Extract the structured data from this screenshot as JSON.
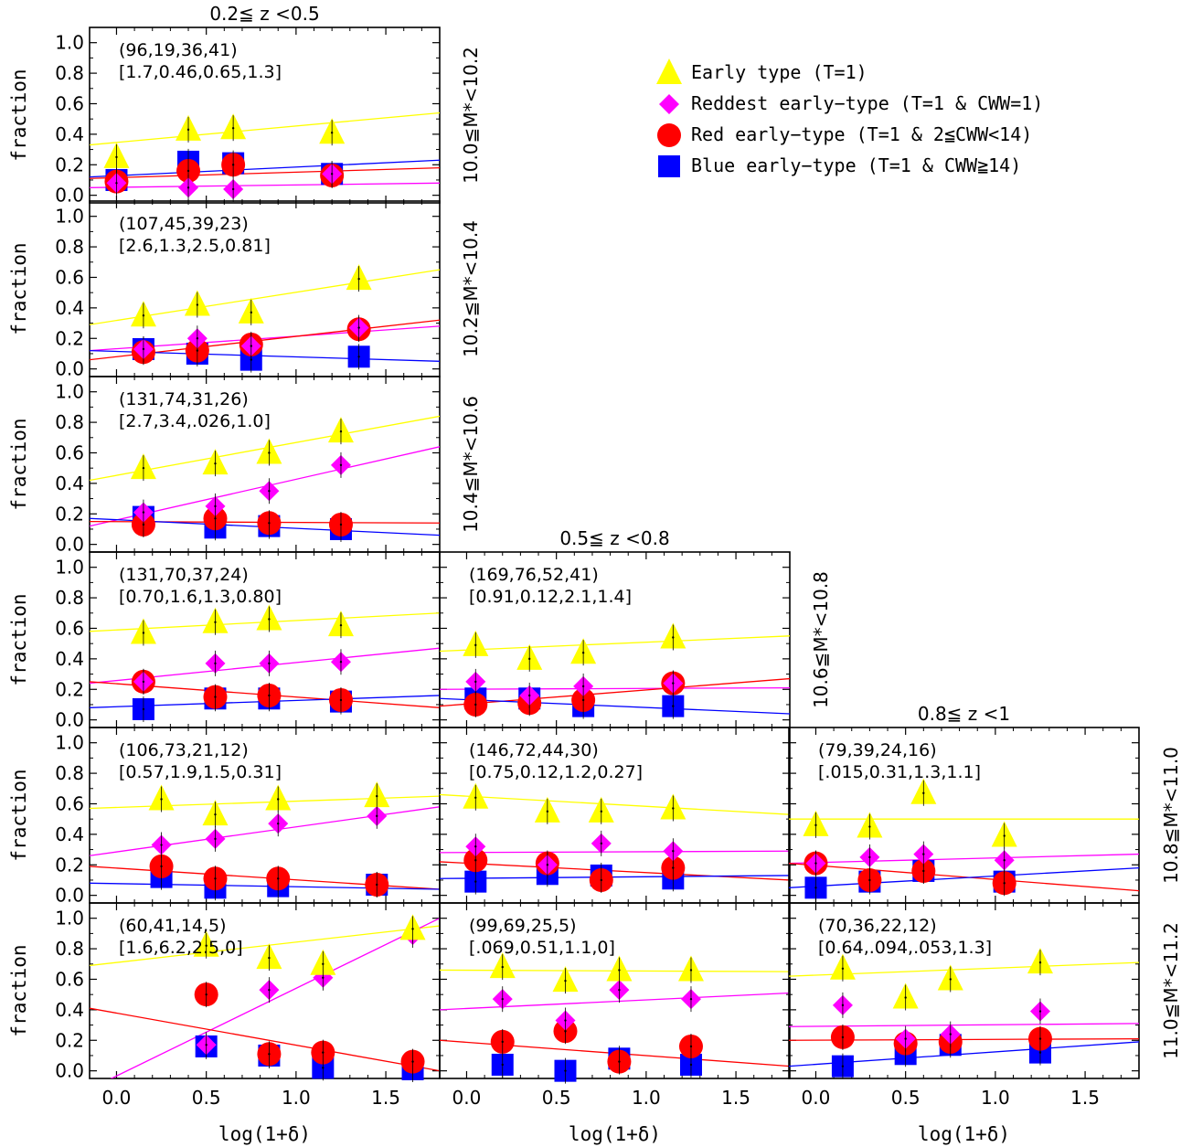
{
  "figure": {
    "x_axis_label": "log(1+δ)",
    "y_axis_label": "fraction",
    "x_tick_labels": [
      "0.0",
      "0.5",
      "1.0",
      "1.5"
    ],
    "y_tick_labels": [
      "0.0",
      "0.2",
      "0.4",
      "0.6",
      "0.8",
      "1.0"
    ],
    "columns": [
      {
        "redshift_label": "0.2≦ z <0.5"
      },
      {
        "redshift_label": "0.5≦ z <0.8"
      },
      {
        "redshift_label": "0.8≦ z <1"
      }
    ],
    "rows": [
      {
        "mass_label": "10.0≦M*<10.2"
      },
      {
        "mass_label": "10.2≦M*<10.4"
      },
      {
        "mass_label": "10.4≦M*<10.6"
      },
      {
        "mass_label": "10.6≦M*<10.8"
      },
      {
        "mass_label": "10.8≦M*<11.0"
      },
      {
        "mass_label": "11.0≦M*<11.2"
      }
    ],
    "legend": [
      {
        "key": "early",
        "label": "Early type (T=1)",
        "marker": "triangle",
        "color": "#ffff00"
      },
      {
        "key": "reddest",
        "label": "Reddest early−type (T=1 & CWW=1)",
        "marker": "diamond",
        "color": "#ff00ff"
      },
      {
        "key": "red",
        "label": "Red early−type  (T=1 & 2≦CWW<14)",
        "marker": "circle",
        "color": "#ff0000"
      },
      {
        "key": "blue",
        "label": "Blue early−type (T=1 & CWW≧14)",
        "marker": "square",
        "color": "#0000ff"
      }
    ],
    "legend_position": "top-right"
  },
  "chart_data": [
    {
      "type": "scatter",
      "panel": "col1-row1",
      "counts": "(96,19,36,41)",
      "ratios": "[1.7,0.46,0.65,1.3]",
      "xlim": [
        -0.15,
        1.8
      ],
      "ylim": [
        -0.05,
        1.1
      ],
      "series": [
        {
          "key": "early",
          "x": [
            0.0,
            0.4,
            0.65,
            1.2
          ],
          "y": [
            0.25,
            0.43,
            0.44,
            0.41
          ],
          "fit": [
            0.33,
            0.54
          ]
        },
        {
          "key": "reddest",
          "x": [
            0.0,
            0.4,
            0.65,
            1.2
          ],
          "y": [
            0.08,
            0.05,
            0.04,
            0.14
          ],
          "fit": [
            0.05,
            0.08
          ]
        },
        {
          "key": "red",
          "x": [
            0.0,
            0.4,
            0.65,
            1.2
          ],
          "y": [
            0.09,
            0.16,
            0.2,
            0.13
          ],
          "fit": [
            0.11,
            0.18
          ]
        },
        {
          "key": "blue",
          "x": [
            0.0,
            0.4,
            0.65,
            1.2
          ],
          "y": [
            0.1,
            0.22,
            0.21,
            0.14
          ],
          "fit": [
            0.12,
            0.23
          ]
        }
      ]
    },
    {
      "type": "scatter",
      "panel": "col1-row2",
      "counts": "(107,45,39,23)",
      "ratios": "[2.6,1.3,2.5,0.81]",
      "xlim": [
        -0.15,
        1.8
      ],
      "ylim": [
        -0.05,
        1.1
      ],
      "series": [
        {
          "key": "early",
          "x": [
            0.15,
            0.45,
            0.75,
            1.35
          ],
          "y": [
            0.35,
            0.42,
            0.37,
            0.59
          ],
          "fit": [
            0.29,
            0.65
          ]
        },
        {
          "key": "reddest",
          "x": [
            0.15,
            0.45,
            0.75,
            1.35
          ],
          "y": [
            0.13,
            0.2,
            0.15,
            0.27
          ],
          "fit": [
            0.12,
            0.28
          ]
        },
        {
          "key": "red",
          "x": [
            0.15,
            0.45,
            0.75,
            1.35
          ],
          "y": [
            0.11,
            0.12,
            0.16,
            0.26
          ],
          "fit": [
            0.06,
            0.32
          ]
        },
        {
          "key": "blue",
          "x": [
            0.15,
            0.45,
            0.75,
            1.35
          ],
          "y": [
            0.13,
            0.1,
            0.06,
            0.08
          ],
          "fit": [
            0.12,
            0.05
          ]
        }
      ]
    },
    {
      "type": "scatter",
      "panel": "col1-row3",
      "counts": "(131,74,31,26)",
      "ratios": "[2.7,3.4,.026,1.0]",
      "xlim": [
        -0.15,
        1.8
      ],
      "ylim": [
        -0.05,
        1.1
      ],
      "series": [
        {
          "key": "early",
          "x": [
            0.15,
            0.55,
            0.85,
            1.25
          ],
          "y": [
            0.5,
            0.53,
            0.6,
            0.74
          ],
          "fit": [
            0.42,
            0.84
          ]
        },
        {
          "key": "reddest",
          "x": [
            0.15,
            0.55,
            0.85,
            1.25
          ],
          "y": [
            0.21,
            0.25,
            0.35,
            0.52
          ],
          "fit": [
            0.12,
            0.64
          ]
        },
        {
          "key": "red",
          "x": [
            0.15,
            0.55,
            0.85,
            1.25
          ],
          "y": [
            0.13,
            0.17,
            0.14,
            0.13
          ],
          "fit": [
            0.15,
            0.14
          ]
        },
        {
          "key": "blue",
          "x": [
            0.15,
            0.55,
            0.85,
            1.25
          ],
          "y": [
            0.18,
            0.11,
            0.12,
            0.1
          ],
          "fit": [
            0.17,
            0.06
          ]
        }
      ]
    },
    {
      "type": "scatter",
      "panel": "col1-row4",
      "counts": "(131,70,37,24)",
      "ratios": "[0.70,1.6,1.3,0.80]",
      "xlim": [
        -0.15,
        1.8
      ],
      "ylim": [
        -0.05,
        1.1
      ],
      "series": [
        {
          "key": "early",
          "x": [
            0.15,
            0.55,
            0.85,
            1.25
          ],
          "y": [
            0.57,
            0.64,
            0.66,
            0.62
          ],
          "fit": [
            0.58,
            0.7
          ]
        },
        {
          "key": "reddest",
          "x": [
            0.15,
            0.55,
            0.85,
            1.25
          ],
          "y": [
            0.25,
            0.37,
            0.37,
            0.38
          ],
          "fit": [
            0.24,
            0.47
          ]
        },
        {
          "key": "red",
          "x": [
            0.15,
            0.55,
            0.85,
            1.25
          ],
          "y": [
            0.25,
            0.15,
            0.16,
            0.13
          ],
          "fit": [
            0.25,
            0.08
          ]
        },
        {
          "key": "blue",
          "x": [
            0.15,
            0.55,
            0.85,
            1.25
          ],
          "y": [
            0.07,
            0.14,
            0.14,
            0.12
          ],
          "fit": [
            0.08,
            0.16
          ]
        }
      ]
    },
    {
      "type": "scatter",
      "panel": "col1-row5",
      "counts": "(106,73,21,12)",
      "ratios": "[0.57,1.9,1.5,0.31]",
      "xlim": [
        -0.15,
        1.8
      ],
      "ylim": [
        -0.05,
        1.1
      ],
      "series": [
        {
          "key": "early",
          "x": [
            0.25,
            0.55,
            0.9,
            1.45
          ],
          "y": [
            0.63,
            0.53,
            0.63,
            0.65
          ],
          "fit": [
            0.57,
            0.65
          ]
        },
        {
          "key": "reddest",
          "x": [
            0.25,
            0.55,
            0.9,
            1.45
          ],
          "y": [
            0.33,
            0.37,
            0.47,
            0.52
          ],
          "fit": [
            0.26,
            0.58
          ]
        },
        {
          "key": "red",
          "x": [
            0.25,
            0.55,
            0.9,
            1.45
          ],
          "y": [
            0.19,
            0.11,
            0.11,
            0.07
          ],
          "fit": [
            0.19,
            0.04
          ]
        },
        {
          "key": "blue",
          "x": [
            0.25,
            0.55,
            0.9,
            1.45
          ],
          "y": [
            0.12,
            0.05,
            0.06,
            0.07
          ],
          "fit": [
            0.08,
            0.04
          ]
        }
      ]
    },
    {
      "type": "scatter",
      "panel": "col1-row6",
      "counts": "(60,41,14,5)",
      "ratios": "[1.6,6.2,2.5,0]",
      "xlim": [
        -0.15,
        1.8
      ],
      "ylim": [
        -0.05,
        1.1
      ],
      "series": [
        {
          "key": "early",
          "x": [
            0.5,
            0.85,
            1.15,
            1.65
          ],
          "y": [
            0.82,
            0.74,
            0.7,
            0.93
          ],
          "fit": [
            0.69,
            0.95
          ]
        },
        {
          "key": "reddest",
          "x": [
            0.5,
            0.85,
            1.15,
            1.65
          ],
          "y": [
            0.17,
            0.53,
            0.61,
            0.89
          ],
          "fit": [
            -0.12,
            1.0
          ]
        },
        {
          "key": "red",
          "x": [
            0.5,
            0.85,
            1.15,
            1.65
          ],
          "y": [
            0.5,
            0.11,
            0.12,
            0.06
          ],
          "fit": [
            0.41,
            0.0
          ]
        },
        {
          "key": "blue",
          "x": [
            0.5,
            0.85,
            1.15,
            1.65
          ],
          "y": [
            0.16,
            0.1,
            0.02,
            0.01
          ],
          "fit": null
        }
      ]
    },
    {
      "type": "scatter",
      "panel": "col2-row4",
      "counts": "(169,76,52,41)",
      "ratios": "[0.91,0.12,2.1,1.4]",
      "xlim": [
        -0.15,
        1.8
      ],
      "ylim": [
        -0.05,
        1.1
      ],
      "series": [
        {
          "key": "early",
          "x": [
            0.05,
            0.35,
            0.65,
            1.15
          ],
          "y": [
            0.49,
            0.4,
            0.44,
            0.54
          ],
          "fit": [
            0.45,
            0.55
          ]
        },
        {
          "key": "reddest",
          "x": [
            0.05,
            0.35,
            0.65,
            1.15
          ],
          "y": [
            0.25,
            0.16,
            0.22,
            0.24
          ],
          "fit": [
            0.2,
            0.21
          ]
        },
        {
          "key": "red",
          "x": [
            0.05,
            0.35,
            0.65,
            1.15
          ],
          "y": [
            0.1,
            0.11,
            0.13,
            0.24
          ],
          "fit": [
            0.09,
            0.27
          ]
        },
        {
          "key": "blue",
          "x": [
            0.05,
            0.35,
            0.65,
            1.15
          ],
          "y": [
            0.14,
            0.14,
            0.09,
            0.09
          ],
          "fit": [
            0.14,
            0.04
          ]
        }
      ]
    },
    {
      "type": "scatter",
      "panel": "col2-row5",
      "counts": "(146,72,44,30)",
      "ratios": "[0.75,0.12,1.2,0.27]",
      "xlim": [
        -0.15,
        1.8
      ],
      "ylim": [
        -0.05,
        1.1
      ],
      "series": [
        {
          "key": "early",
          "x": [
            0.05,
            0.45,
            0.75,
            1.15
          ],
          "y": [
            0.64,
            0.55,
            0.55,
            0.57
          ],
          "fit": [
            0.66,
            0.53
          ]
        },
        {
          "key": "reddest",
          "x": [
            0.05,
            0.45,
            0.75,
            1.15
          ],
          "y": [
            0.32,
            0.2,
            0.34,
            0.29
          ],
          "fit": [
            0.28,
            0.29
          ]
        },
        {
          "key": "red",
          "x": [
            0.05,
            0.45,
            0.75,
            1.15
          ],
          "y": [
            0.23,
            0.21,
            0.1,
            0.18
          ],
          "fit": [
            0.22,
            0.1
          ]
        },
        {
          "key": "blue",
          "x": [
            0.05,
            0.45,
            0.75,
            1.15
          ],
          "y": [
            0.09,
            0.14,
            0.13,
            0.11
          ],
          "fit": [
            0.11,
            0.13
          ]
        }
      ]
    },
    {
      "type": "scatter",
      "panel": "col2-row6",
      "counts": "(99,69,25,5)",
      "ratios": "[.069,0.51,1.1,0]",
      "xlim": [
        -0.15,
        1.8
      ],
      "ylim": [
        -0.05,
        1.1
      ],
      "series": [
        {
          "key": "early",
          "x": [
            0.2,
            0.55,
            0.85,
            1.25
          ],
          "y": [
            0.68,
            0.59,
            0.66,
            0.66
          ],
          "fit": [
            0.66,
            0.65
          ]
        },
        {
          "key": "reddest",
          "x": [
            0.2,
            0.55,
            0.85,
            1.25
          ],
          "y": [
            0.47,
            0.33,
            0.53,
            0.47
          ],
          "fit": [
            0.4,
            0.51
          ]
        },
        {
          "key": "red",
          "x": [
            0.2,
            0.55,
            0.85,
            1.25
          ],
          "y": [
            0.19,
            0.26,
            0.06,
            0.16
          ],
          "fit": [
            0.2,
            0.03
          ]
        },
        {
          "key": "blue",
          "x": [
            0.2,
            0.55,
            0.85,
            1.25
          ],
          "y": [
            0.04,
            0.0,
            0.08,
            0.04
          ],
          "fit": null
        }
      ]
    },
    {
      "type": "scatter",
      "panel": "col3-row5",
      "counts": "(79,39,24,16)",
      "ratios": "[.015,0.31,1.3,1.1]",
      "xlim": [
        -0.15,
        1.8
      ],
      "ylim": [
        -0.05,
        1.1
      ],
      "series": [
        {
          "key": "early",
          "x": [
            0.0,
            0.3,
            0.6,
            1.05
          ],
          "y": [
            0.46,
            0.45,
            0.67,
            0.39
          ],
          "fit": [
            0.5,
            0.5
          ]
        },
        {
          "key": "reddest",
          "x": [
            0.0,
            0.3,
            0.6,
            1.05
          ],
          "y": [
            0.21,
            0.25,
            0.27,
            0.23
          ],
          "fit": [
            0.21,
            0.27
          ]
        },
        {
          "key": "red",
          "x": [
            0.0,
            0.3,
            0.6,
            1.05
          ],
          "y": [
            0.21,
            0.1,
            0.16,
            0.08
          ],
          "fit": [
            0.21,
            0.03
          ]
        },
        {
          "key": "blue",
          "x": [
            0.0,
            0.3,
            0.6,
            1.05
          ],
          "y": [
            0.05,
            0.09,
            0.16,
            0.09
          ],
          "fit": [
            0.05,
            0.18
          ]
        }
      ]
    },
    {
      "type": "scatter",
      "panel": "col3-row6",
      "counts": "(70,36,22,12)",
      "ratios": "[0.64,.094,.053,1.3]",
      "xlim": [
        -0.15,
        1.8
      ],
      "ylim": [
        -0.05,
        1.1
      ],
      "series": [
        {
          "key": "early",
          "x": [
            0.15,
            0.5,
            0.75,
            1.25
          ],
          "y": [
            0.67,
            0.48,
            0.6,
            0.71
          ],
          "fit": [
            0.62,
            0.71
          ]
        },
        {
          "key": "reddest",
          "x": [
            0.15,
            0.5,
            0.75,
            1.25
          ],
          "y": [
            0.43,
            0.21,
            0.24,
            0.39
          ],
          "fit": [
            0.29,
            0.31
          ]
        },
        {
          "key": "red",
          "x": [
            0.15,
            0.5,
            0.75,
            1.25
          ],
          "y": [
            0.22,
            0.18,
            0.19,
            0.21
          ],
          "fit": [
            0.2,
            0.21
          ]
        },
        {
          "key": "blue",
          "x": [
            0.15,
            0.5,
            0.75,
            1.25
          ],
          "y": [
            0.03,
            0.11,
            0.17,
            0.12
          ],
          "fit": [
            0.03,
            0.19
          ]
        }
      ]
    }
  ]
}
